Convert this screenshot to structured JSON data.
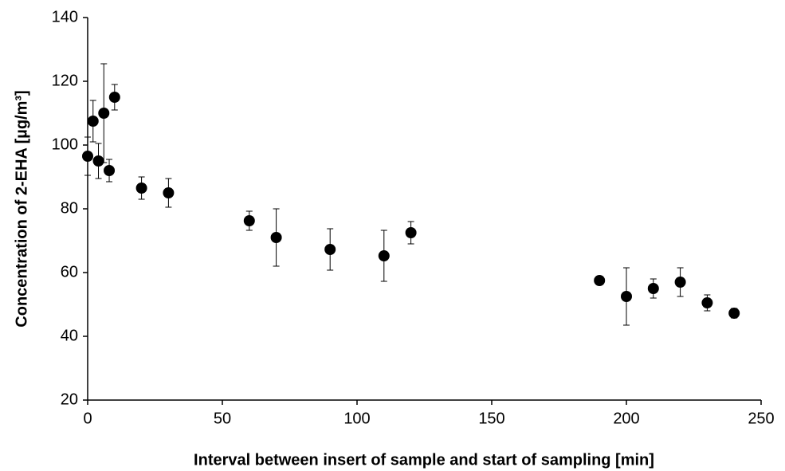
{
  "chart_data": {
    "type": "scatter",
    "xlabel": "Interval between insert of sample and start of sampling [min]",
    "ylabel": "Concentration of 2-EHA [µg/m³]",
    "x": [
      0,
      2,
      4,
      6,
      8,
      10,
      20,
      30,
      60,
      70,
      90,
      110,
      120,
      190,
      200,
      210,
      220,
      230,
      240
    ],
    "values": [
      96.5,
      107.5,
      95,
      110,
      92,
      115,
      86.5,
      85,
      76.25,
      71,
      67.25,
      65.25,
      72.5,
      57.5,
      52.5,
      55,
      57,
      50.5,
      47.25
    ],
    "errors": [
      6,
      6.5,
      5.5,
      15.5,
      3.5,
      4,
      3.5,
      4.5,
      3,
      9,
      6.5,
      8,
      3.5,
      1,
      9,
      3,
      4.5,
      2.5,
      1.5
    ],
    "color": "#000000",
    "xlim": [
      0,
      250
    ],
    "xticks": [
      0,
      50,
      100,
      150,
      200,
      250
    ],
    "ylim": [
      20,
      140
    ],
    "yticks": [
      20,
      40,
      60,
      80,
      100,
      120,
      140
    ],
    "grid": false
  }
}
